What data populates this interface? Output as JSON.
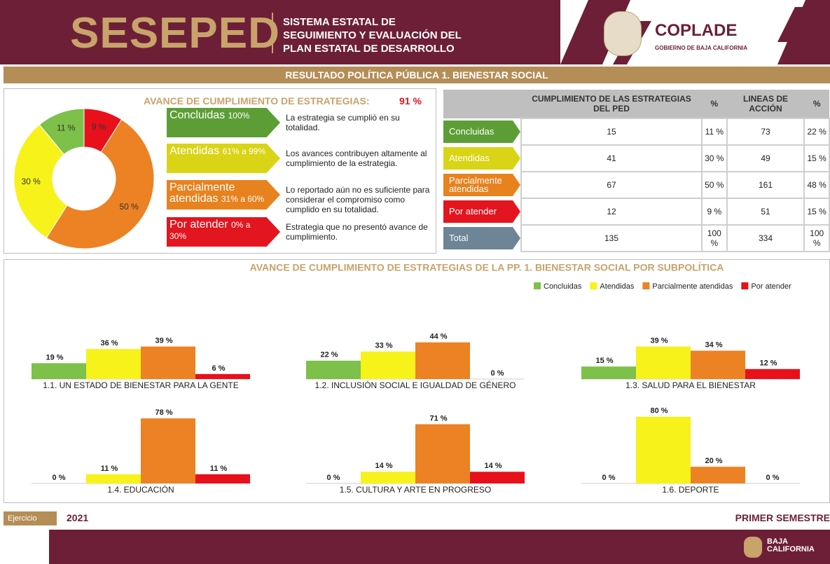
{
  "header": {
    "logo": "SESEPED",
    "system": [
      "SISTEMA ESTATAL DE",
      "SEGUIMIENTO Y EVALUACIÓN DEL",
      "PLAN ESTATAL DE DESARROLLO"
    ],
    "org": "COPLADE",
    "org_sub": "GOBIERNO DE BAJA CALIFORNIA"
  },
  "banner": "RESULTADO POLÍTICA PÚBLICA 1. BIENESTAR SOCIAL",
  "summary": {
    "title": "AVANCE DE CUMPLIMIENTO DE ESTRATEGIAS:",
    "value": "91 %"
  },
  "levels": [
    {
      "name": "Concluidas",
      "range": "100%",
      "description": "La estrategia se cumplió en su totalidad.",
      "color": "#5c9e35"
    },
    {
      "name": "Atendidas",
      "range": "61% a 99%",
      "description": "Los avances contribuyen altamente al cumplimiento de la estrategia.",
      "color": "#d9d416"
    },
    {
      "name": "Parcialmente atendidas",
      "range": "31% a 60%",
      "description": "Lo reportado aún no es suficiente para considerar el compromiso como cumplido en su totalidad.",
      "color": "#e8821e"
    },
    {
      "name": "Por atender",
      "range": "0% a 30%",
      "description": "Estrategia que no presentó avance de cumplimiento.",
      "color": "#e3151e"
    }
  ],
  "table": {
    "headers": [
      "CUMPLIMIENTO DE LAS ESTRATEGIAS DEL PED",
      "%",
      "LINEAS DE ACCIÓN",
      "%"
    ],
    "rows": [
      [
        "Concluidas",
        "15",
        "11 %",
        "73",
        "22 %"
      ],
      [
        "Atendidas",
        "41",
        "30 %",
        "49",
        "15 %"
      ],
      [
        "Parcialmente atendidas",
        "67",
        "50 %",
        "161",
        "48 %"
      ],
      [
        "Por atender",
        "12",
        "9 %",
        "51",
        "15 %"
      ],
      [
        "Total",
        "135",
        "100 %",
        "334",
        "100 %"
      ]
    ],
    "colors": [
      "#5c9e35",
      "#d9d416",
      "#e8821e",
      "#e3151e",
      "#6e8497"
    ]
  },
  "subpolicy_legend": {
    "title": "AVANCE DE CUMPLIMIENTO DE ESTRATEGIAS DE LA PP. 1. BIENESTAR SOCIAL POR SUBPOLÍTICA",
    "names": [
      "Concluidas",
      "Atendidas",
      "Parcialmente atendidas",
      "Por atender"
    ],
    "colors": [
      "#7dc04a",
      "#f7f21a",
      "#ec8223",
      "#e8101b"
    ]
  },
  "chart_data": [
    {
      "type": "pie",
      "donut": true,
      "values": [
        11,
        30,
        50,
        9
      ],
      "value_labels": [
        "11 %",
        "30 %",
        "50 %",
        "9 %"
      ],
      "colors": [
        "#7dc04a",
        "#f7f21a",
        "#ec8223",
        "#e8101b"
      ]
    },
    {
      "type": "bar",
      "title": "1.1. UN ESTADO DE BIENESTAR PARA LA GENTE",
      "values": [
        19,
        36,
        39,
        6
      ],
      "value_labels": [
        "19 %",
        "36 %",
        "39 %",
        "6 %"
      ]
    },
    {
      "type": "bar",
      "title": "1.2. INCLUSIÓN SOCIAL E IGUALDAD DE GÉNERO",
      "values": [
        22,
        33,
        44,
        0
      ],
      "value_labels": [
        "22 %",
        "33 %",
        "44 %",
        "0 %"
      ]
    },
    {
      "type": "bar",
      "title": "1.3. SALUD PARA EL BIENESTAR",
      "values": [
        15,
        39,
        34,
        12
      ],
      "value_labels": [
        "15 %",
        "39 %",
        "34 %",
        "12 %"
      ]
    },
    {
      "type": "bar",
      "title": "1.4. EDUCACIÓN",
      "values": [
        0,
        11,
        78,
        11
      ],
      "value_labels": [
        "0 %",
        "11 %",
        "78 %",
        "11 %"
      ]
    },
    {
      "type": "bar",
      "title": "1.5. CULTURA Y ARTE EN PROGRESO",
      "values": [
        0,
        14,
        71,
        14
      ],
      "value_labels": [
        "0 %",
        "14 %",
        "71 %",
        "14 %"
      ]
    },
    {
      "type": "bar",
      "title": "1.6. DEPORTE",
      "values": [
        0,
        80,
        20,
        0
      ],
      "value_labels": [
        "0 %",
        "80 %",
        "20 %",
        "0 %"
      ]
    }
  ],
  "footer": {
    "label": "Ejercicio",
    "year": "2021",
    "period": "PRIMER SEMESTRE",
    "brand": [
      "BAJA",
      "CALIFORNIA"
    ]
  }
}
